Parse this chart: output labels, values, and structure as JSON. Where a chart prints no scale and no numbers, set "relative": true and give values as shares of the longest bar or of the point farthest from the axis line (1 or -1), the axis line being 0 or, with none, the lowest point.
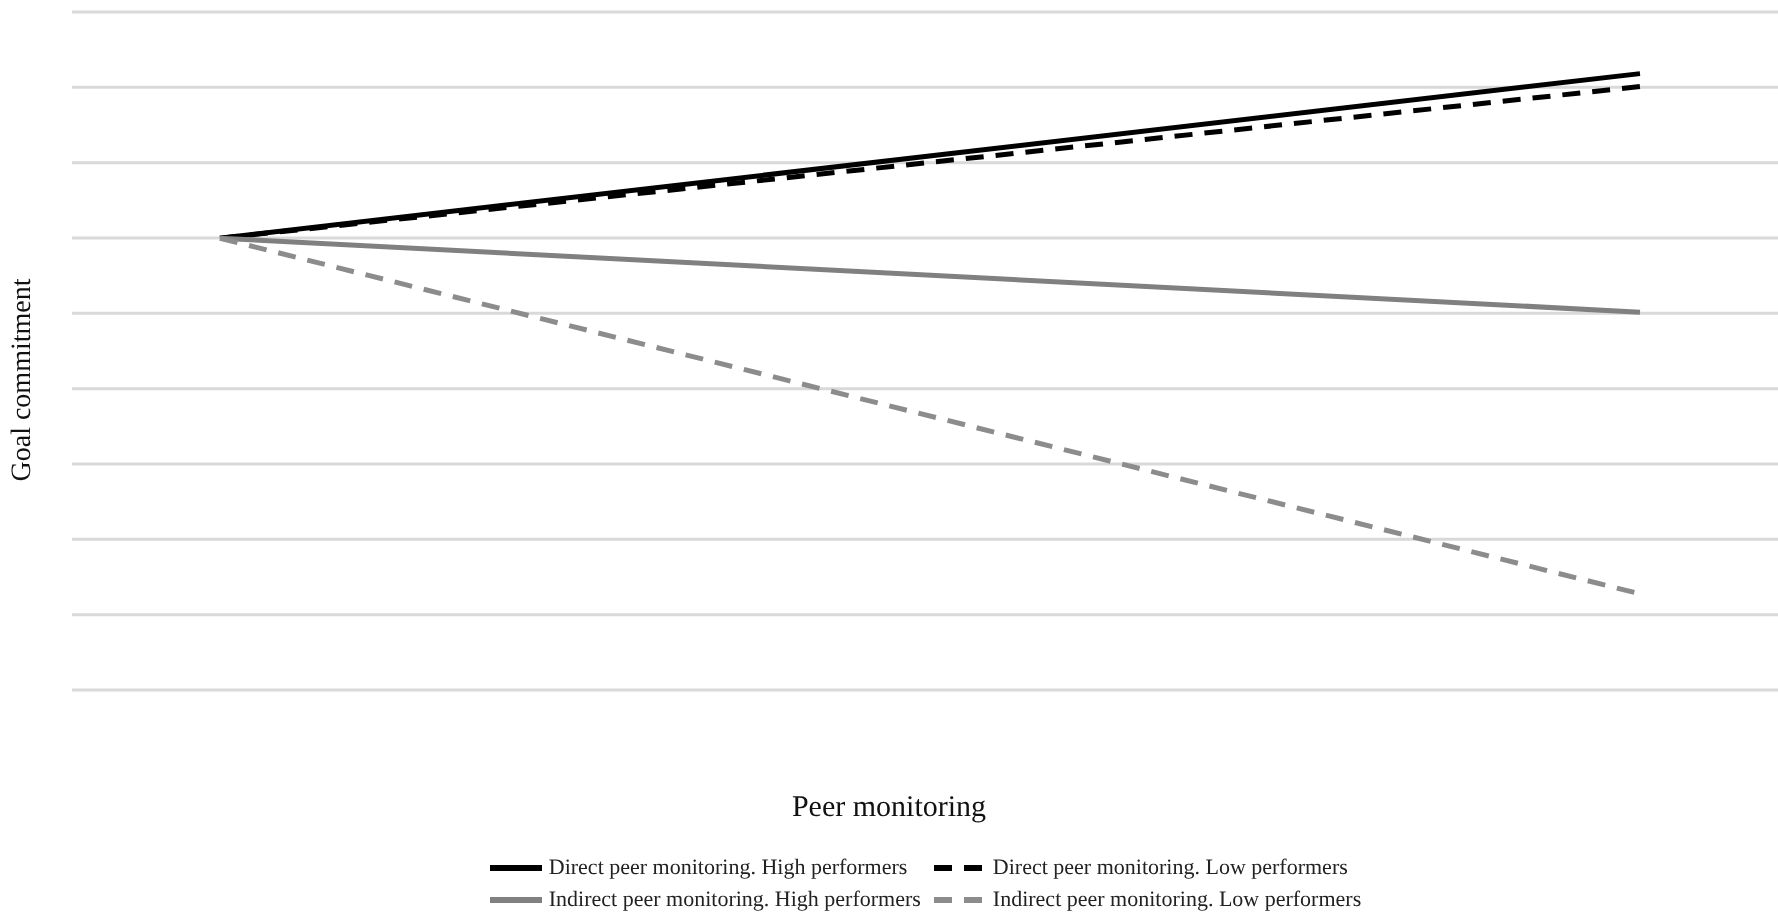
{
  "chart_data": {
    "type": "line",
    "xlabel": "Peer monitoring",
    "ylabel": "Goal commitment",
    "relative": true,
    "grid": "y",
    "legend": "bottom",
    "marker": "none",
    "categories": [
      null,
      null
    ],
    "series": [
      {
        "name": "Direct peer monitoring. High performers",
        "color": "#000000",
        "line_style": "solid",
        "values": [
          0.733,
          1
        ]
      },
      {
        "name": "Direct peer monitoring. Low performers",
        "color": "#000000",
        "line_style": "dashed",
        "values": [
          0.733,
          0.979
        ]
      },
      {
        "name": "Indirect peer monitoring. High performers",
        "color": "#808080",
        "line_style": "solid",
        "values": [
          0.733,
          0.613
        ]
      },
      {
        "name": "Indirect peer monitoring. Low performers",
        "color": "#8c8c8c",
        "line_style": "dashed",
        "values": [
          0.733,
          0.156
        ]
      }
    ]
  }
}
